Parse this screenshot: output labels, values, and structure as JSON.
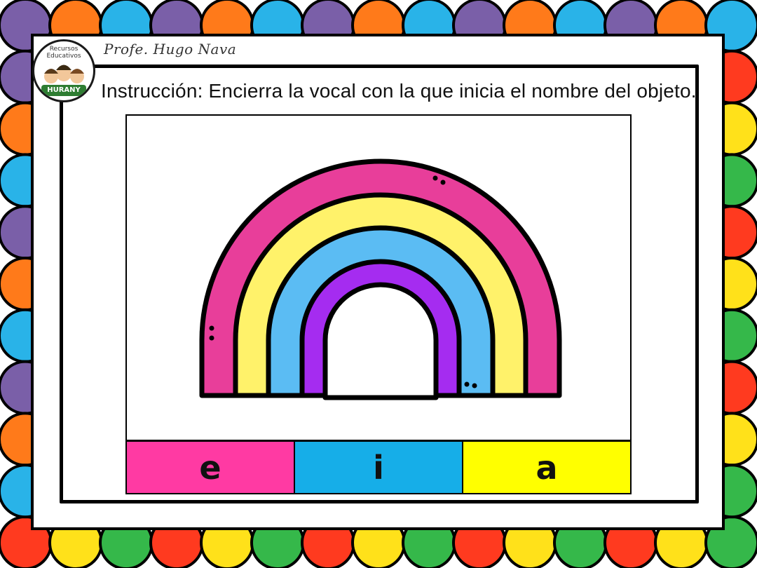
{
  "header": {
    "author": "Profe. Hugo Nava",
    "instruction": "Instrucción: Encierra la vocal con la que inicia el nombre del objeto."
  },
  "logo": {
    "top_text": "Recursos Educativos",
    "banner_text": "HURANY"
  },
  "options": [
    {
      "label": "e",
      "color": "#ff3aa3"
    },
    {
      "label": "i",
      "color": "#16aee8"
    },
    {
      "label": "a",
      "color": "#ffff00"
    }
  ],
  "rainbow_colors": [
    "#e83e9a",
    "#fff26a",
    "#5bbcf3",
    "#a52cf0"
  ],
  "border_colors": [
    "#7a5fa8",
    "#ff3a1f",
    "#ff7a1a",
    "#ffe11a",
    "#29b3e8",
    "#35b84a"
  ]
}
